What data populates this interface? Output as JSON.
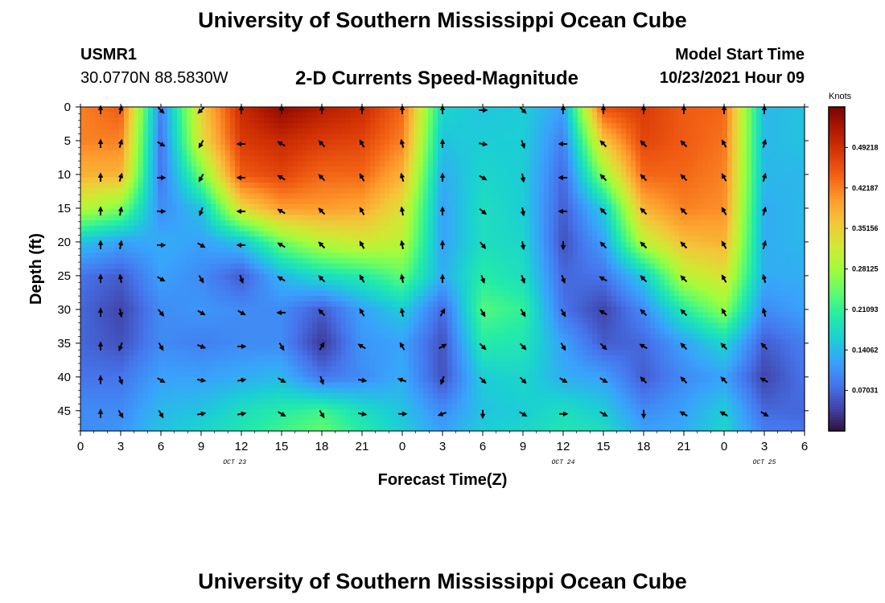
{
  "header": {
    "title": "University of Southern Mississippi Ocean Cube",
    "station_id": "USMR1",
    "coordinates": "30.0770N  88.5830W",
    "plot_title": "2-D Currents Speed-Magnitude",
    "start_label": "Model Start Time",
    "start_value": "10/23/2021 Hour 09"
  },
  "footer": {
    "title": "University of Southern Mississippi Ocean Cube"
  },
  "colors": {
    "scale": [
      "#30123b",
      "#4145ab",
      "#4675ed",
      "#39a2fc",
      "#1bcfd4",
      "#24eca6",
      "#61fc6c",
      "#a4fc3b",
      "#d1e834",
      "#f3c63a",
      "#fe9b2d",
      "#f36315",
      "#d93806",
      "#b11901",
      "#7a0403"
    ],
    "arrow": "#000000"
  },
  "chart_data": {
    "type": "heatmap",
    "title": "2-D Currents Speed-Magnitude",
    "xlabel": "Forecast Time(Z)",
    "ylabel": "Depth (ft)",
    "x_ticks": [
      "0",
      "3",
      "6",
      "9",
      "12",
      "15",
      "18",
      "21",
      "0",
      "3",
      "6",
      "9",
      "12",
      "15",
      "18",
      "21",
      "0",
      "3",
      "6"
    ],
    "x_range_hours": [
      0,
      54
    ],
    "date_labels": [
      {
        "label": "OCT 23",
        "hour": 11.5
      },
      {
        "label": "OCT 24",
        "hour": 36
      },
      {
        "label": "OCT 25",
        "hour": 51
      }
    ],
    "y_ticks": [
      0,
      5,
      10,
      15,
      20,
      25,
      30,
      35,
      40,
      45
    ],
    "y_range_ft": [
      0,
      48
    ],
    "y_inverted": true,
    "colorbar": {
      "title": "Knots",
      "ticks": [
        "0.07031",
        "0.14062",
        "0.21093",
        "0.28125",
        "0.35156",
        "0.42187",
        "0.49218"
      ],
      "range": [
        0,
        0.5625
      ]
    },
    "speed_field": {
      "rows_depth_ft": [
        0,
        5,
        10,
        15,
        20,
        25,
        30,
        35,
        40,
        45,
        48
      ],
      "cols_hour": [
        0,
        3,
        6,
        9,
        12,
        15,
        18,
        21,
        24,
        27,
        30,
        33,
        36,
        39,
        42,
        45,
        48,
        51,
        54
      ],
      "values_knots": [
        [
          0.42,
          0.45,
          0.09,
          0.35,
          0.5,
          0.55,
          0.52,
          0.5,
          0.44,
          0.17,
          0.15,
          0.16,
          0.12,
          0.46,
          0.48,
          0.45,
          0.44,
          0.14,
          0.15
        ],
        [
          0.42,
          0.42,
          0.08,
          0.33,
          0.48,
          0.5,
          0.48,
          0.47,
          0.42,
          0.15,
          0.16,
          0.16,
          0.09,
          0.36,
          0.47,
          0.45,
          0.43,
          0.14,
          0.15
        ],
        [
          0.38,
          0.38,
          0.08,
          0.25,
          0.45,
          0.47,
          0.44,
          0.44,
          0.38,
          0.13,
          0.17,
          0.16,
          0.07,
          0.27,
          0.44,
          0.44,
          0.42,
          0.14,
          0.14
        ],
        [
          0.3,
          0.26,
          0.1,
          0.15,
          0.34,
          0.4,
          0.4,
          0.39,
          0.33,
          0.12,
          0.18,
          0.16,
          0.06,
          0.16,
          0.38,
          0.42,
          0.41,
          0.13,
          0.14
        ],
        [
          0.15,
          0.12,
          0.13,
          0.12,
          0.15,
          0.25,
          0.3,
          0.32,
          0.3,
          0.12,
          0.18,
          0.17,
          0.05,
          0.12,
          0.3,
          0.37,
          0.38,
          0.13,
          0.14
        ],
        [
          0.08,
          0.06,
          0.12,
          0.1,
          0.06,
          0.14,
          0.18,
          0.2,
          0.24,
          0.13,
          0.2,
          0.18,
          0.07,
          0.08,
          0.16,
          0.3,
          0.33,
          0.13,
          0.13
        ],
        [
          0.07,
          0.04,
          0.1,
          0.11,
          0.1,
          0.1,
          0.06,
          0.12,
          0.16,
          0.07,
          0.23,
          0.21,
          0.08,
          0.04,
          0.1,
          0.2,
          0.27,
          0.1,
          0.12
        ],
        [
          0.07,
          0.05,
          0.1,
          0.09,
          0.1,
          0.1,
          0.03,
          0.11,
          0.12,
          0.05,
          0.2,
          0.19,
          0.12,
          0.06,
          0.07,
          0.12,
          0.17,
          0.06,
          0.09
        ],
        [
          0.08,
          0.08,
          0.12,
          0.12,
          0.13,
          0.14,
          0.08,
          0.1,
          0.13,
          0.05,
          0.16,
          0.17,
          0.13,
          0.12,
          0.06,
          0.1,
          0.12,
          0.04,
          0.08
        ],
        [
          0.1,
          0.1,
          0.14,
          0.15,
          0.18,
          0.2,
          0.22,
          0.18,
          0.15,
          0.1,
          0.15,
          0.16,
          0.18,
          0.16,
          0.1,
          0.12,
          0.16,
          0.07,
          0.07
        ],
        [
          0.1,
          0.11,
          0.15,
          0.17,
          0.19,
          0.22,
          0.24,
          0.2,
          0.16,
          0.12,
          0.16,
          0.17,
          0.19,
          0.18,
          0.12,
          0.13,
          0.17,
          0.09,
          0.08
        ]
      ]
    },
    "vectors": {
      "hours": [
        1.5,
        3,
        6,
        9,
        12,
        15,
        18,
        21,
        24,
        27,
        30,
        33,
        36,
        39,
        42,
        45,
        48,
        51
      ],
      "depths_ft": [
        0,
        5,
        10,
        15,
        20,
        25,
        30,
        35,
        40,
        45
      ],
      "directions_deg": [
        [
          0,
          15,
          135,
          225,
          0,
          0,
          0,
          0,
          0,
          0,
          90,
          135,
          0,
          0,
          0,
          0,
          0,
          0
        ],
        [
          0,
          15,
          120,
          210,
          270,
          300,
          315,
          330,
          345,
          0,
          100,
          160,
          270,
          315,
          315,
          315,
          330,
          15
        ],
        [
          0,
          15,
          90,
          210,
          270,
          300,
          315,
          330,
          345,
          0,
          120,
          170,
          270,
          315,
          315,
          315,
          330,
          15
        ],
        [
          0,
          10,
          90,
          200,
          270,
          300,
          315,
          330,
          350,
          0,
          130,
          170,
          270,
          315,
          315,
          315,
          330,
          15
        ],
        [
          0,
          10,
          90,
          120,
          270,
          300,
          315,
          330,
          350,
          0,
          140,
          170,
          180,
          315,
          315,
          315,
          330,
          15
        ],
        [
          0,
          350,
          120,
          150,
          160,
          300,
          315,
          330,
          350,
          0,
          160,
          160,
          160,
          300,
          315,
          315,
          330,
          345
        ],
        [
          0,
          170,
          140,
          120,
          120,
          270,
          315,
          330,
          350,
          30,
          150,
          150,
          150,
          300,
          315,
          315,
          330,
          345
        ],
        [
          0,
          200,
          150,
          110,
          90,
          150,
          30,
          300,
          330,
          60,
          135,
          135,
          150,
          135,
          300,
          315,
          315,
          315
        ],
        [
          0,
          160,
          120,
          100,
          80,
          120,
          160,
          100,
          290,
          200,
          135,
          135,
          120,
          120,
          315,
          315,
          315,
          300
        ],
        [
          0,
          150,
          150,
          80,
          80,
          120,
          150,
          100,
          90,
          250,
          180,
          120,
          90,
          120,
          180,
          300,
          300,
          120
        ]
      ]
    }
  }
}
